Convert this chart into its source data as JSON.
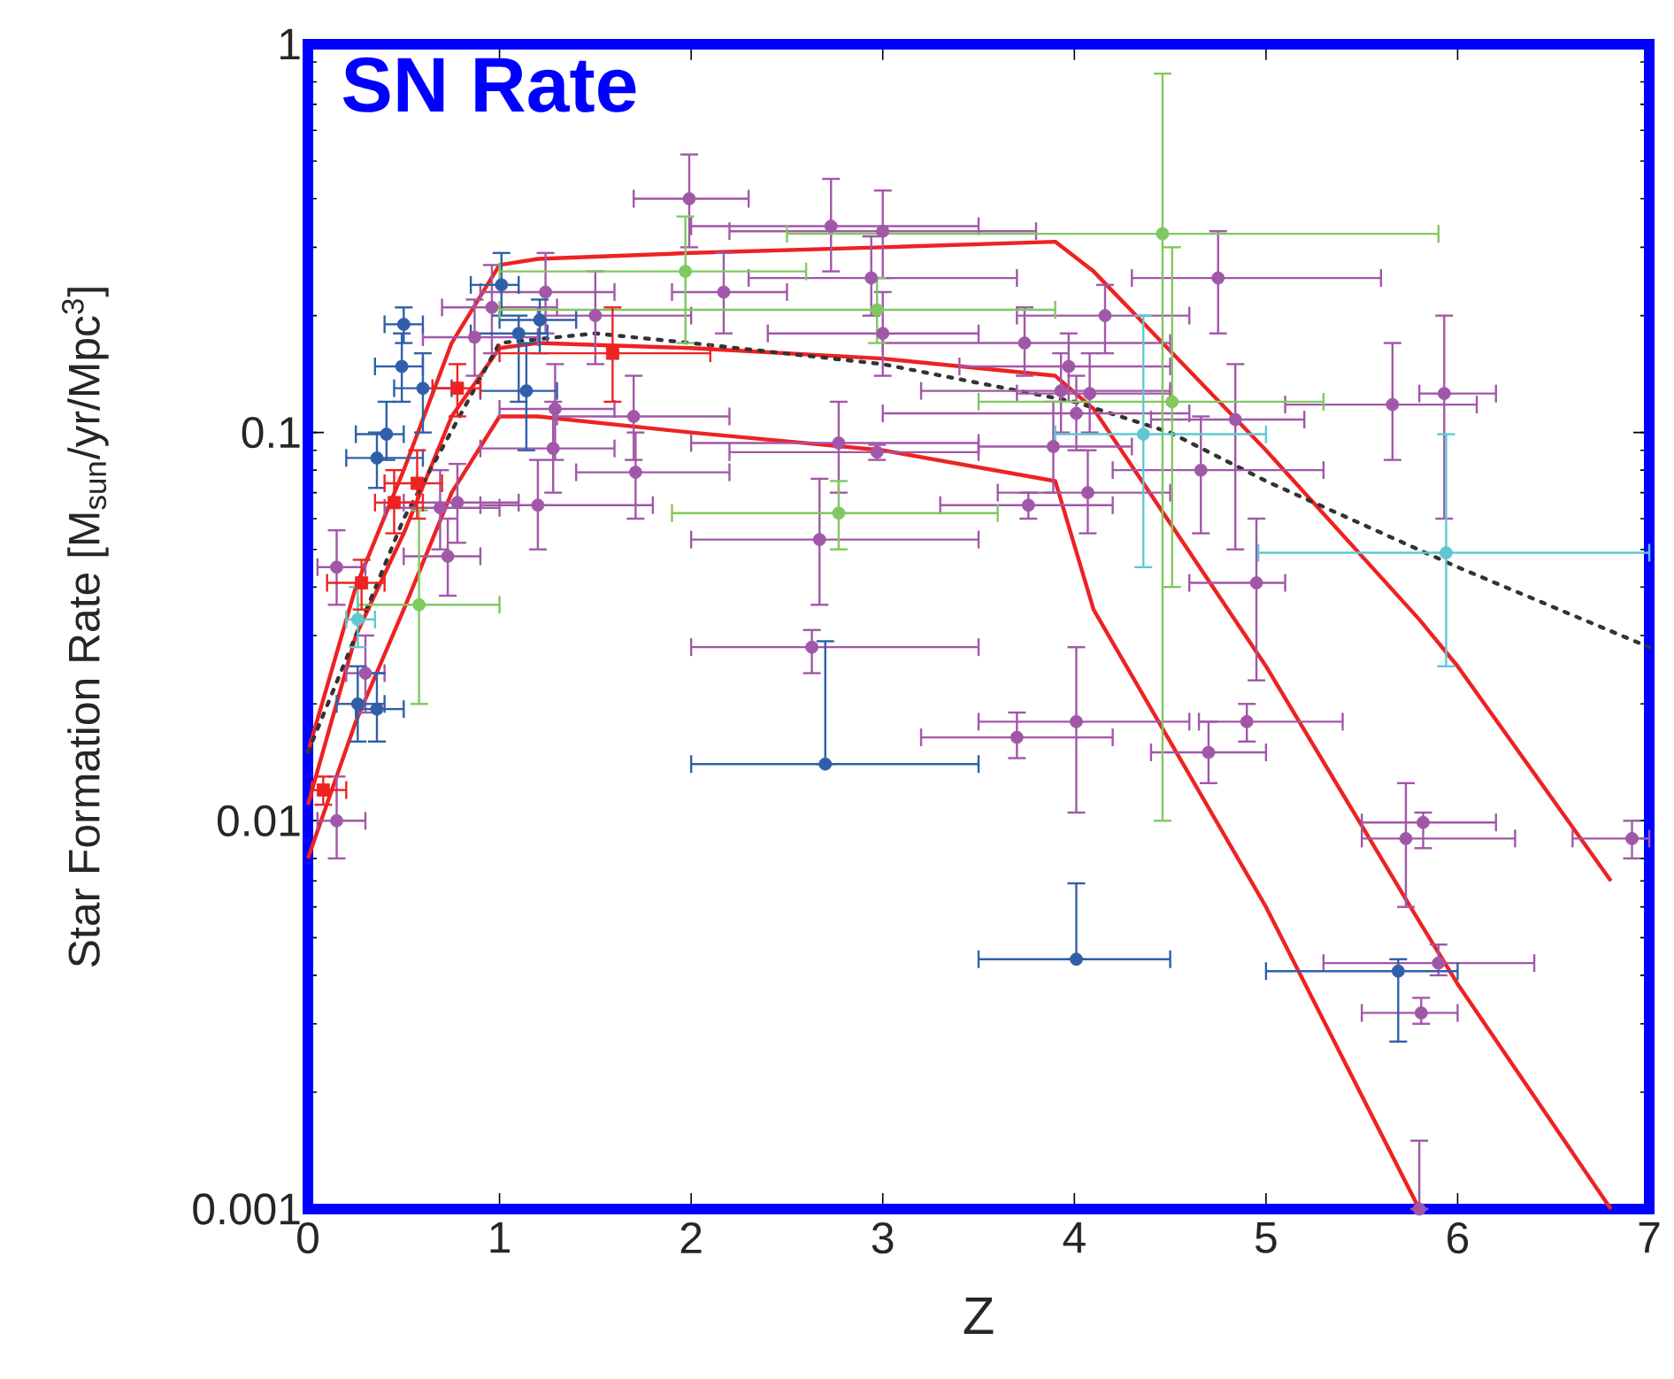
{
  "chart_data": {
    "type": "scatter",
    "title": "SN Rate",
    "xlabel": "Z",
    "ylabel": "Star Formation Rate [M$_{sun}$/yr/Mpc$^{3}$]",
    "log": "y",
    "xlim": [
      0,
      7
    ],
    "ylim": [
      0.001,
      1
    ],
    "xticks": [
      0,
      1,
      2,
      3,
      4,
      5,
      6,
      7
    ],
    "yticks": [
      0.001,
      0.01,
      0.1,
      1
    ],
    "series": [
      {
        "type": "line",
        "color": "#ee2222",
        "line_style": "solid",
        "x": [
          0,
          0.25,
          0.5,
          0.75,
          1.0,
          1.2,
          2,
          3,
          3.9,
          4.1,
          5,
          5.8,
          6,
          6.8
        ],
        "values": [
          0.011,
          0.03,
          0.055,
          0.11,
          0.165,
          0.17,
          0.165,
          0.155,
          0.14,
          0.115,
          0.025,
          0.0055,
          0.0038,
          0.001
        ]
      },
      {
        "type": "line",
        "color": "#ee2222",
        "line_style": "solid",
        "x": [
          0,
          0.25,
          0.5,
          0.75,
          1.0,
          1.2,
          2,
          3,
          3.9,
          4.1,
          5,
          5.8,
          6,
          6.8
        ],
        "values": [
          0.015,
          0.04,
          0.08,
          0.17,
          0.27,
          0.28,
          0.29,
          0.3,
          0.31,
          0.26,
          0.09,
          0.033,
          0.025,
          0.007
        ]
      },
      {
        "type": "line",
        "color": "#ee2222",
        "line_style": "solid",
        "x": [
          0,
          0.25,
          0.5,
          0.75,
          1.0,
          1.2,
          2,
          3,
          3.9,
          4.1,
          5,
          5.8
        ],
        "values": [
          0.008,
          0.018,
          0.035,
          0.07,
          0.11,
          0.11,
          0.1,
          0.09,
          0.075,
          0.035,
          0.006,
          0.001
        ]
      },
      {
        "type": "line",
        "color": "#333333",
        "line_style": "dotted",
        "x": [
          0,
          0.5,
          1.0,
          1.5,
          2,
          3,
          4,
          4.5,
          5,
          6,
          7
        ],
        "values": [
          0.015,
          0.06,
          0.17,
          0.18,
          0.17,
          0.15,
          0.12,
          0.1,
          0.075,
          0.045,
          0.028
        ]
      },
      {
        "color": "#a157a8",
        "marker": "circle",
        "x": [
          0.15,
          0.3,
          0.15,
          0.69,
          0.78,
          0.73,
          0.87,
          0.96,
          1.24,
          1.29,
          1.28,
          1.2,
          1.5,
          1.7,
          1.71,
          1.99,
          2.17,
          2.73,
          3.0,
          2.94,
          3.0,
          3.74,
          4.16,
          3.97,
          3.93,
          4.01,
          4.08,
          3.89,
          4.07,
          3.76,
          2.77,
          2.97,
          2.67,
          2.63,
          3.7,
          4.01,
          4.7,
          4.9,
          4.95,
          4.66,
          4.84,
          5.66,
          5.93,
          4.75,
          5.82,
          5.73,
          6.91,
          5.9,
          5.81,
          5.8
        ],
        "values": [
          0.045,
          0.024,
          0.01,
          0.064,
          0.066,
          0.048,
          0.176,
          0.21,
          0.23,
          0.115,
          0.091,
          0.065,
          0.2,
          0.11,
          0.079,
          0.4,
          0.23,
          0.34,
          0.33,
          0.25,
          0.18,
          0.17,
          0.2,
          0.148,
          0.128,
          0.112,
          0.126,
          0.092,
          0.07,
          0.065,
          0.094,
          0.089,
          0.053,
          0.028,
          0.0164,
          0.018,
          0.015,
          0.018,
          0.041,
          0.08,
          0.108,
          0.118,
          0.126,
          0.25,
          0.0099,
          0.009,
          0.009,
          0.0043,
          0.0032,
          0.001
        ],
        "errors": [
          [
            0.036,
            0.056
          ],
          [
            0.019,
            0.03
          ],
          [
            0.008,
            0.013
          ],
          [
            0.05,
            0.08
          ],
          [
            0.052,
            0.083
          ],
          [
            0.038,
            0.06
          ],
          [
            0.14,
            0.22
          ],
          [
            0.16,
            0.27
          ],
          [
            0.18,
            0.29
          ],
          [
            0.085,
            0.15
          ],
          [
            0.07,
            0.12
          ],
          [
            0.05,
            0.085
          ],
          [
            0.15,
            0.26
          ],
          [
            0.085,
            0.14
          ],
          [
            0.06,
            0.1
          ],
          [
            0.3,
            0.52
          ],
          [
            0.18,
            0.29
          ],
          [
            0.26,
            0.45
          ],
          [
            0.25,
            0.42
          ],
          [
            0.2,
            0.32
          ],
          [
            0.14,
            0.23
          ],
          [
            0.14,
            0.21
          ],
          [
            0.16,
            0.24
          ],
          [
            0.12,
            0.18
          ],
          [
            0.1,
            0.16
          ],
          [
            0.09,
            0.14
          ],
          [
            0.1,
            0.16
          ],
          [
            0.07,
            0.12
          ],
          [
            0.055,
            0.09
          ],
          [
            0.06,
            0.07
          ],
          [
            0.07,
            0.12
          ],
          [
            0.085,
            0.093
          ],
          [
            0.036,
            0.076
          ],
          [
            0.024,
            0.031
          ],
          [
            0.0145,
            0.019
          ],
          [
            0.0105,
            0.028
          ],
          [
            0.0125,
            0.018
          ],
          [
            0.016,
            0.02
          ],
          [
            0.023,
            0.06
          ],
          [
            0.055,
            0.11
          ],
          [
            0.05,
            0.15
          ],
          [
            0.085,
            0.17
          ],
          [
            0.06,
            0.2
          ],
          [
            0.18,
            0.33
          ],
          [
            0.0085,
            0.0105
          ],
          [
            0.006,
            0.0125
          ],
          [
            0.008,
            0.01
          ],
          [
            0.004,
            0.0048
          ],
          [
            0.003,
            0.0035
          ],
          [
            0.001,
            0.0015
          ]
        ],
        "xerrors": [
          [
            0.05,
            0.3
          ],
          [
            0.2,
            0.4
          ],
          [
            0.05,
            0.3
          ],
          [
            0.4,
            1.0
          ],
          [
            0.5,
            1.1
          ],
          [
            0.5,
            0.9
          ],
          [
            0.6,
            1.2
          ],
          [
            0.7,
            1.3
          ],
          [
            0.9,
            1.6
          ],
          [
            1.0,
            1.6
          ],
          [
            0.9,
            1.6
          ],
          [
            0.9,
            1.8
          ],
          [
            1.2,
            2.0
          ],
          [
            1.3,
            2.2
          ],
          [
            1.4,
            2.2
          ],
          [
            1.7,
            2.3
          ],
          [
            1.9,
            2.5
          ],
          [
            2.0,
            3.5
          ],
          [
            2.2,
            3.8
          ],
          [
            2.3,
            3.7
          ],
          [
            2.4,
            3.5
          ],
          [
            3.0,
            4.5
          ],
          [
            3.7,
            4.6
          ],
          [
            3.4,
            4.5
          ],
          [
            3.2,
            4.5
          ],
          [
            3.0,
            4.6
          ],
          [
            3.7,
            4.5
          ],
          [
            3.5,
            4.3
          ],
          [
            3.6,
            4.5
          ],
          [
            3.3,
            4.2
          ],
          [
            2.0,
            3.5
          ],
          [
            2.2,
            3.5
          ],
          [
            2.0,
            3.5
          ],
          [
            2.0,
            3.5
          ],
          [
            3.2,
            4.2
          ],
          [
            3.5,
            4.6
          ],
          [
            4.4,
            5.0
          ],
          [
            4.65,
            5.4
          ],
          [
            4.6,
            5.1
          ],
          [
            4.2,
            5.3
          ],
          [
            4.4,
            5.2
          ],
          [
            5.1,
            6.1
          ],
          [
            5.8,
            6.2
          ],
          [
            4.3,
            5.6
          ],
          [
            5.5,
            6.2
          ],
          [
            5.5,
            6.3
          ],
          [
            6.6,
            7.0
          ],
          [
            5.3,
            6.4
          ],
          [
            5.5,
            6.0
          ],
          null
        ]
      },
      {
        "color": "#2f5fa8",
        "marker": "circle",
        "x": [
          0.5,
          0.49,
          0.6,
          0.41,
          0.36,
          1.01,
          1.1,
          1.14,
          1.21,
          0.36,
          0.26,
          2.7,
          4.01,
          5.69
        ],
        "values": [
          0.19,
          0.148,
          0.13,
          0.099,
          0.086,
          0.24,
          0.18,
          0.128,
          0.195,
          0.0194,
          0.02,
          0.014,
          0.0044,
          0.0041
        ],
        "errors": [
          [
            0.17,
            0.21
          ],
          [
            0.12,
            0.18
          ],
          [
            0.1,
            0.16
          ],
          [
            0.085,
            0.12
          ],
          [
            0.072,
            0.1
          ],
          [
            0.2,
            0.29
          ],
          [
            0.12,
            0.2
          ],
          [
            0.09,
            0.17
          ],
          [
            0.16,
            0.22
          ],
          [
            0.016,
            0.024
          ],
          [
            0.016,
            0.025
          ],
          [
            0.014,
            0.029
          ],
          [
            0.0044,
            0.0069
          ],
          [
            0.0027,
            0.0044
          ]
        ],
        "xerrors": [
          [
            0.4,
            0.6
          ],
          [
            0.35,
            0.6
          ],
          [
            0.45,
            0.75
          ],
          [
            0.25,
            0.5
          ],
          [
            0.2,
            0.6
          ],
          [
            0.85,
            1.1
          ],
          [
            0.85,
            1.25
          ],
          [
            0.9,
            1.3
          ],
          [
            1.0,
            1.4
          ],
          [
            0.25,
            0.5
          ],
          [
            0.15,
            0.4
          ],
          [
            2.0,
            3.5
          ],
          [
            3.5,
            4.5
          ],
          [
            5.0,
            6.0
          ]
        ]
      },
      {
        "color": "#80c860",
        "marker": "circle",
        "x": [
          0.58,
          1.97,
          2.97,
          2.77,
          4.46,
          4.51
        ],
        "values": [
          0.036,
          0.26,
          0.207,
          0.062,
          0.325,
          0.12
        ],
        "errors": [
          [
            0.02,
            0.063
          ],
          [
            0.17,
            0.36
          ],
          [
            0.17,
            0.25
          ],
          [
            0.05,
            0.075
          ],
          [
            0.01,
            0.84
          ],
          [
            0.04,
            0.3
          ]
        ],
        "xerrors": [
          [
            0.26,
            1.0
          ],
          [
            1.0,
            2.6
          ],
          [
            1.0,
            3.9
          ],
          [
            1.9,
            3.6
          ],
          [
            2.5,
            5.9
          ],
          [
            3.5,
            5.3
          ]
        ]
      },
      {
        "color": "#60c8d0",
        "marker": "circle",
        "x": [
          0.26,
          4.36,
          5.94
        ],
        "values": [
          0.033,
          0.099,
          0.049
        ],
        "errors": [
          [
            0.028,
            0.04
          ],
          [
            0.045,
            0.2
          ],
          [
            0.025,
            0.099
          ]
        ],
        "xerrors": [
          [
            0.2,
            0.35
          ],
          [
            3.9,
            5.0
          ],
          [
            4.96,
            7.0
          ]
        ]
      },
      {
        "color": "#ee2222",
        "marker": "square",
        "x": [
          0.08,
          0.28,
          0.45,
          0.57,
          0.78,
          1.59
        ],
        "values": [
          0.012,
          0.041,
          0.066,
          0.074,
          0.13,
          0.16
        ],
        "errors": [
          [
            0.011,
            0.013
          ],
          [
            0.035,
            0.047
          ],
          [
            0.055,
            0.08
          ],
          [
            0.06,
            0.09
          ],
          [
            0.11,
            0.15
          ],
          [
            0.12,
            0.21
          ]
        ],
        "xerrors": [
          [
            0.02,
            0.2
          ],
          [
            0.1,
            0.4
          ],
          [
            0.35,
            0.6
          ],
          [
            0.4,
            0.7
          ],
          [
            0.65,
            0.9
          ],
          [
            1.0,
            2.1
          ]
        ]
      }
    ]
  }
}
